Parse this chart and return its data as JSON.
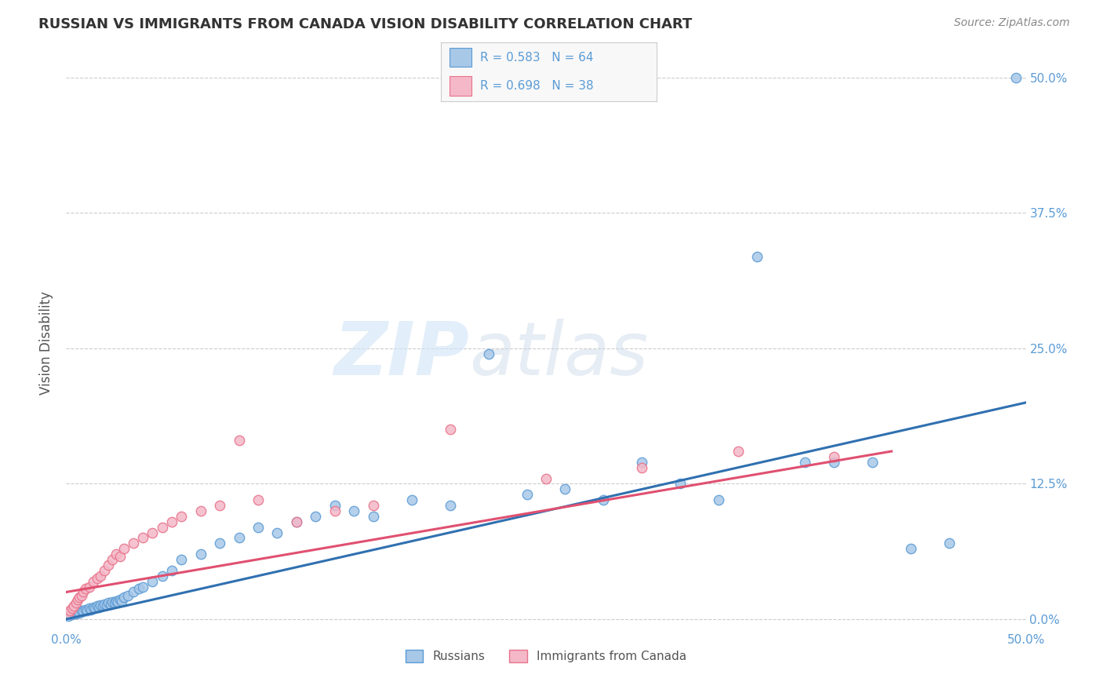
{
  "title": "RUSSIAN VS IMMIGRANTS FROM CANADA VISION DISABILITY CORRELATION CHART",
  "source": "Source: ZipAtlas.com",
  "ylabel": "Vision Disability",
  "color_blue": "#a8c8e8",
  "color_blue_edge": "#5b9bd5",
  "color_pink": "#f4b8c8",
  "color_pink_edge": "#e8728a",
  "color_trendline_blue": "#3070b0",
  "color_trendline_pink": "#e05070",
  "xlim": [
    0.0,
    50.0
  ],
  "ylim": [
    -1.0,
    52.0
  ],
  "yticks": [
    0.0,
    12.5,
    25.0,
    37.5,
    50.0
  ],
  "ytick_labels": [
    "0.0%",
    "12.5%",
    "25.0%",
    "37.5%",
    "50.0%"
  ],
  "russians_x": [
    0.1,
    0.2,
    0.3,
    0.4,
    0.5,
    0.6,
    0.7,
    0.8,
    0.9,
    1.0,
    1.1,
    1.2,
    1.3,
    1.4,
    1.5,
    1.6,
    1.7,
    1.8,
    1.9,
    2.0,
    2.1,
    2.2,
    2.3,
    2.4,
    2.5,
    2.6,
    2.7,
    2.8,
    2.9,
    3.0,
    3.2,
    3.5,
    3.8,
    4.0,
    4.5,
    5.0,
    5.5,
    6.0,
    7.0,
    8.0,
    9.0,
    10.0,
    11.0,
    12.0,
    13.0,
    14.0,
    15.0,
    16.0,
    18.0,
    20.0,
    22.0,
    24.0,
    26.0,
    28.0,
    30.0,
    32.0,
    34.0,
    36.0,
    38.5,
    40.0,
    42.0,
    44.0,
    46.0,
    49.5
  ],
  "russians_y": [
    0.3,
    0.5,
    0.4,
    0.6,
    0.5,
    0.7,
    0.6,
    0.8,
    0.7,
    0.9,
    0.8,
    1.0,
    0.9,
    1.1,
    1.0,
    1.2,
    1.1,
    1.3,
    1.2,
    1.4,
    1.3,
    1.5,
    1.4,
    1.6,
    1.5,
    1.7,
    1.6,
    1.8,
    1.7,
    2.0,
    2.2,
    2.5,
    2.8,
    3.0,
    3.5,
    4.0,
    4.5,
    5.5,
    6.0,
    7.0,
    7.5,
    8.5,
    8.0,
    9.0,
    9.5,
    10.5,
    10.0,
    9.5,
    11.0,
    10.5,
    24.5,
    11.5,
    12.0,
    11.0,
    14.5,
    12.5,
    11.0,
    33.5,
    14.5,
    14.5,
    14.5,
    6.5,
    7.0,
    50.0
  ],
  "canada_x": [
    0.1,
    0.2,
    0.3,
    0.4,
    0.5,
    0.6,
    0.7,
    0.8,
    0.9,
    1.0,
    1.2,
    1.4,
    1.6,
    1.8,
    2.0,
    2.2,
    2.4,
    2.6,
    2.8,
    3.0,
    3.5,
    4.0,
    4.5,
    5.0,
    5.5,
    6.0,
    7.0,
    8.0,
    9.0,
    10.0,
    12.0,
    14.0,
    16.0,
    20.0,
    25.0,
    30.0,
    35.0,
    40.0
  ],
  "canada_y": [
    0.5,
    0.8,
    1.0,
    1.2,
    1.5,
    1.8,
    2.0,
    2.2,
    2.5,
    2.8,
    3.0,
    3.5,
    3.8,
    4.0,
    4.5,
    5.0,
    5.5,
    6.0,
    5.8,
    6.5,
    7.0,
    7.5,
    8.0,
    8.5,
    9.0,
    9.5,
    10.0,
    10.5,
    16.5,
    11.0,
    9.0,
    10.0,
    10.5,
    17.5,
    13.0,
    14.0,
    15.5,
    15.0
  ],
  "trend_blue_x0": 0.0,
  "trend_blue_x1": 50.0,
  "trend_blue_y0": 0.0,
  "trend_blue_y1": 20.0,
  "trend_pink_x0": 0.0,
  "trend_pink_x1": 43.0,
  "trend_pink_y0": 2.5,
  "trend_pink_y1": 15.5,
  "watermark_zip": "ZIP",
  "watermark_atlas": "atlas",
  "legend_blue_text": "R = 0.583   N = 64",
  "legend_pink_text": "R = 0.698   N = 38"
}
